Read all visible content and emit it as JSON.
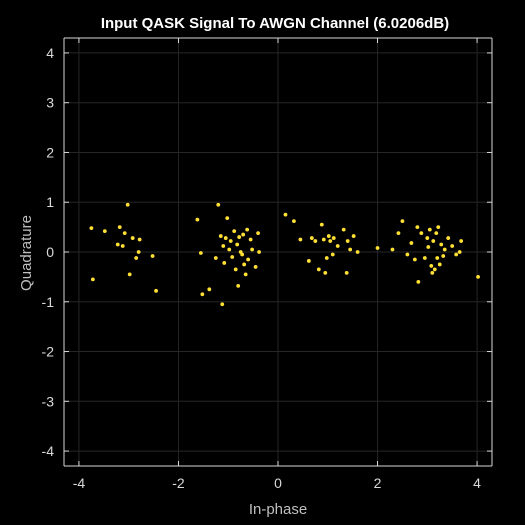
{
  "chart_data": {
    "type": "scatter",
    "title": "Input QASK Signal To AWGN Channel (6.0206dB)",
    "xlabel": "In-phase",
    "ylabel": "Quadrature",
    "xlim": [
      -4.3,
      4.3
    ],
    "ylim": [
      -4.3,
      4.3
    ],
    "xticks": [
      -4,
      -2,
      0,
      2,
      4
    ],
    "yticks": [
      -4,
      -3,
      -2,
      -1,
      0,
      1,
      2,
      3,
      4
    ],
    "grid": true,
    "background": "#000000",
    "marker_color": "#ffe135",
    "series": [
      {
        "name": "",
        "x": [
          -3.75,
          -3.72,
          -3.48,
          -3.22,
          -3.18,
          -3.12,
          -3.08,
          -3.02,
          -2.98,
          -2.92,
          -2.85,
          -2.78,
          -2.8,
          -2.52,
          -2.45,
          -1.62,
          -1.52,
          -1.55,
          -1.38,
          -1.25,
          -1.2,
          -1.15,
          -1.12,
          -1.1,
          -1.08,
          -1.05,
          -1.02,
          -0.98,
          -0.95,
          -0.92,
          -0.88,
          -0.85,
          -0.82,
          -0.8,
          -0.78,
          -0.75,
          -0.72,
          -0.7,
          -0.68,
          -0.65,
          -0.62,
          -0.6,
          -0.55,
          -0.52,
          -0.45,
          -0.4,
          -0.38,
          0.15,
          0.32,
          0.45,
          0.62,
          0.68,
          0.75,
          0.82,
          0.88,
          0.92,
          0.95,
          0.98,
          1.02,
          1.05,
          1.1,
          1.12,
          1.2,
          1.32,
          1.38,
          1.4,
          1.45,
          1.52,
          1.6,
          2.0,
          2.3,
          2.42,
          2.5,
          2.6,
          2.68,
          2.75,
          2.8,
          2.82,
          2.88,
          2.95,
          3.0,
          3.02,
          3.05,
          3.08,
          3.1,
          3.12,
          3.15,
          3.18,
          3.2,
          3.22,
          3.25,
          3.28,
          3.32,
          3.35,
          3.42,
          3.5,
          3.58,
          3.65,
          3.68,
          4.02
        ],
        "y": [
          0.48,
          -0.55,
          0.42,
          0.15,
          0.5,
          0.12,
          0.38,
          0.95,
          -0.45,
          0.28,
          -0.12,
          0.25,
          0.0,
          -0.08,
          -0.78,
          0.65,
          -0.85,
          -0.02,
          -0.75,
          -0.12,
          0.95,
          0.32,
          -1.05,
          0.12,
          -0.22,
          0.28,
          0.68,
          0.05,
          0.22,
          -0.1,
          0.42,
          -0.35,
          0.15,
          -0.68,
          0.3,
          0.0,
          -0.05,
          0.35,
          -0.25,
          -0.45,
          0.45,
          -0.15,
          0.25,
          0.05,
          -0.3,
          0.38,
          0.0,
          0.75,
          0.62,
          0.25,
          -0.18,
          0.28,
          0.22,
          -0.35,
          0.55,
          0.25,
          -0.42,
          -0.12,
          0.32,
          0.22,
          -0.05,
          0.28,
          0.12,
          0.45,
          -0.42,
          0.22,
          0.05,
          0.32,
          0.0,
          0.08,
          0.05,
          0.38,
          0.62,
          -0.05,
          0.18,
          -0.15,
          0.5,
          -0.6,
          0.38,
          -0.12,
          0.28,
          0.1,
          0.45,
          -0.28,
          -0.42,
          0.22,
          -0.35,
          0.38,
          -0.12,
          0.5,
          -0.25,
          0.15,
          -0.08,
          0.05,
          0.28,
          0.12,
          -0.05,
          0.0,
          0.22,
          -0.5
        ]
      }
    ]
  }
}
